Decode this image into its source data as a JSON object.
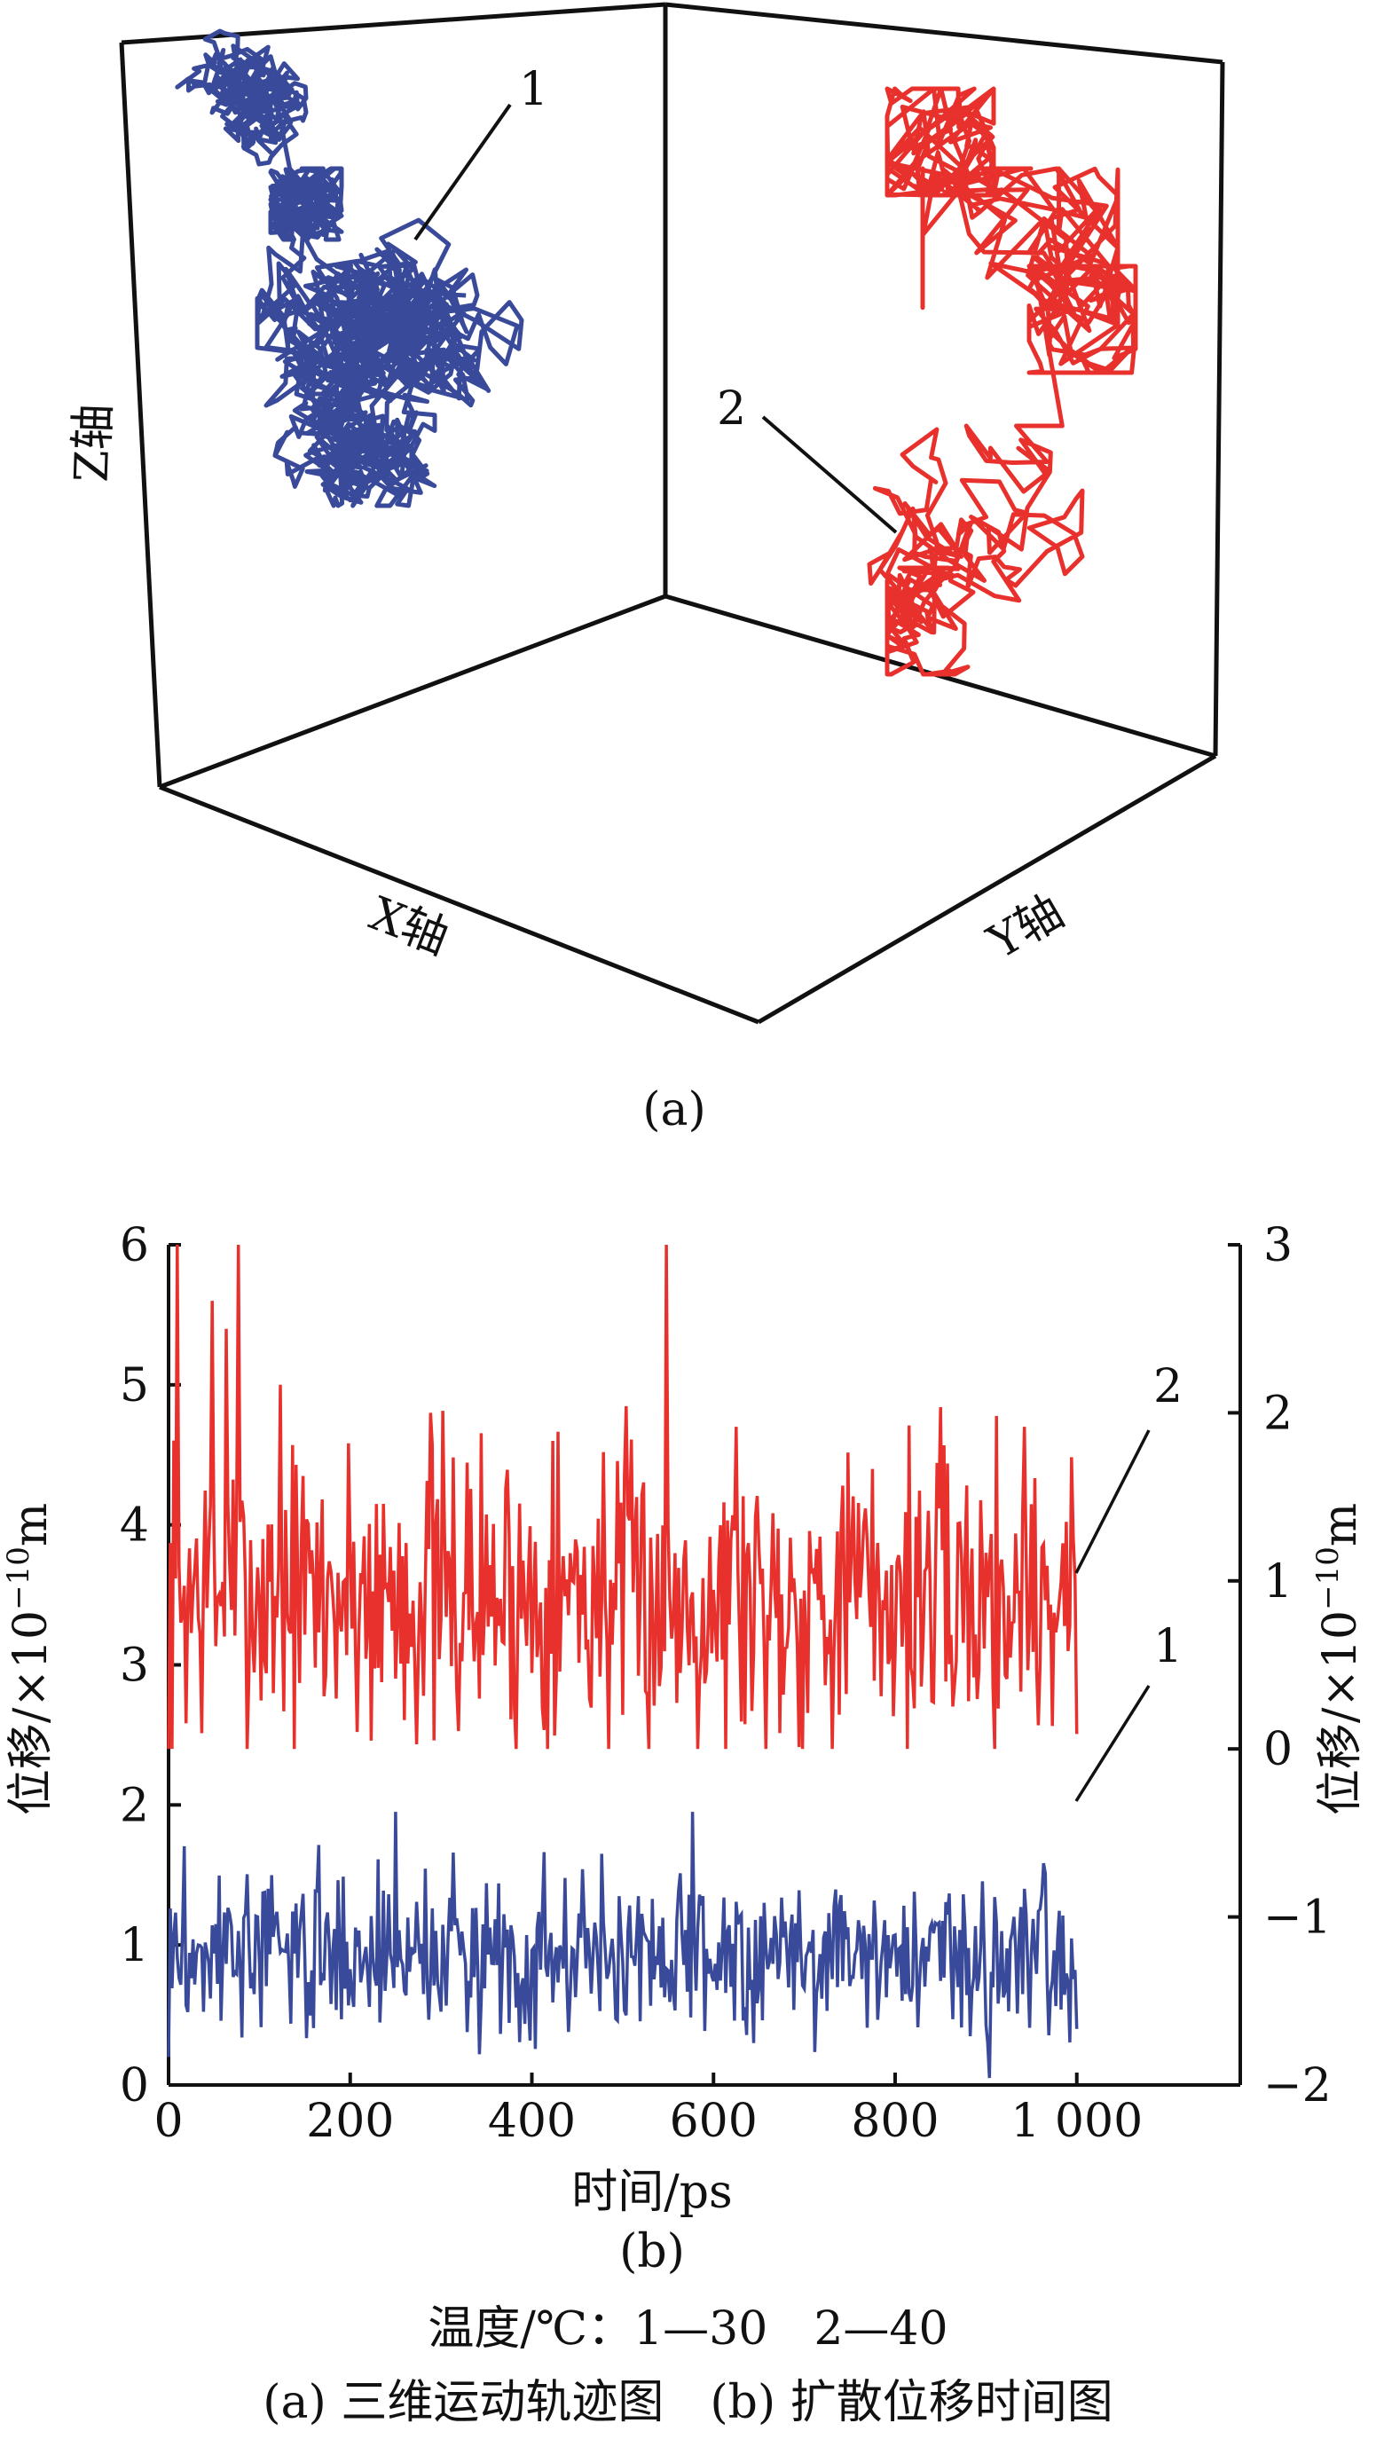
{
  "chart_data": [
    {
      "type": "line",
      "panel_label": "(a)",
      "axis_labels": {
        "x": "X轴",
        "y": "Y轴",
        "z": "Z轴"
      },
      "series": [
        {
          "name": "1",
          "color": "#3a4a9a",
          "description_words": "dense trajectory cluster"
        },
        {
          "name": "2",
          "color": "#e8312c",
          "description_words": "dense trajectory cluster"
        }
      ]
    },
    {
      "type": "line",
      "panel_label": "(b)",
      "xlabel": "时间/ps",
      "ylabel_left": "位移/×10",
      "ylabel_right": "位移/×10",
      "ylabel_exp": "−10",
      "ylabel_unit": "m",
      "xlim": [
        0,
        1180
      ],
      "ylim_left": [
        0,
        6
      ],
      "ylim_right": [
        -2,
        3
      ],
      "x_ticks": [
        "0",
        "200",
        "400",
        "600",
        "800",
        "1 000"
      ],
      "y_ticks_left": [
        "0",
        "1",
        "2",
        "3",
        "4",
        "5",
        "6"
      ],
      "y_ticks_right": [
        "−2",
        "−1",
        "0",
        "1",
        "2",
        "3"
      ],
      "x_tick_values": [
        0,
        200,
        400,
        600,
        800,
        1000
      ],
      "y_tick_values_left": [
        0,
        1,
        2,
        3,
        4,
        5,
        6
      ],
      "y_tick_values_right": [
        -2,
        -1,
        0,
        1,
        2,
        3
      ],
      "series": [
        {
          "name": "1",
          "color": "#3a4a9a",
          "x_range": [
            0,
            1000
          ],
          "mean": 0.95,
          "min": 0.05,
          "max": 1.95
        },
        {
          "name": "2",
          "color": "#e8312c",
          "x_range": [
            0,
            1000
          ],
          "mean": 3.5,
          "min": 2.4,
          "max": 6.0
        }
      ]
    }
  ],
  "legend_text": "温度/℃：1—30　2—40",
  "caption": "(a) 三维运动轨迹图　(b) 扩散位移时间图"
}
